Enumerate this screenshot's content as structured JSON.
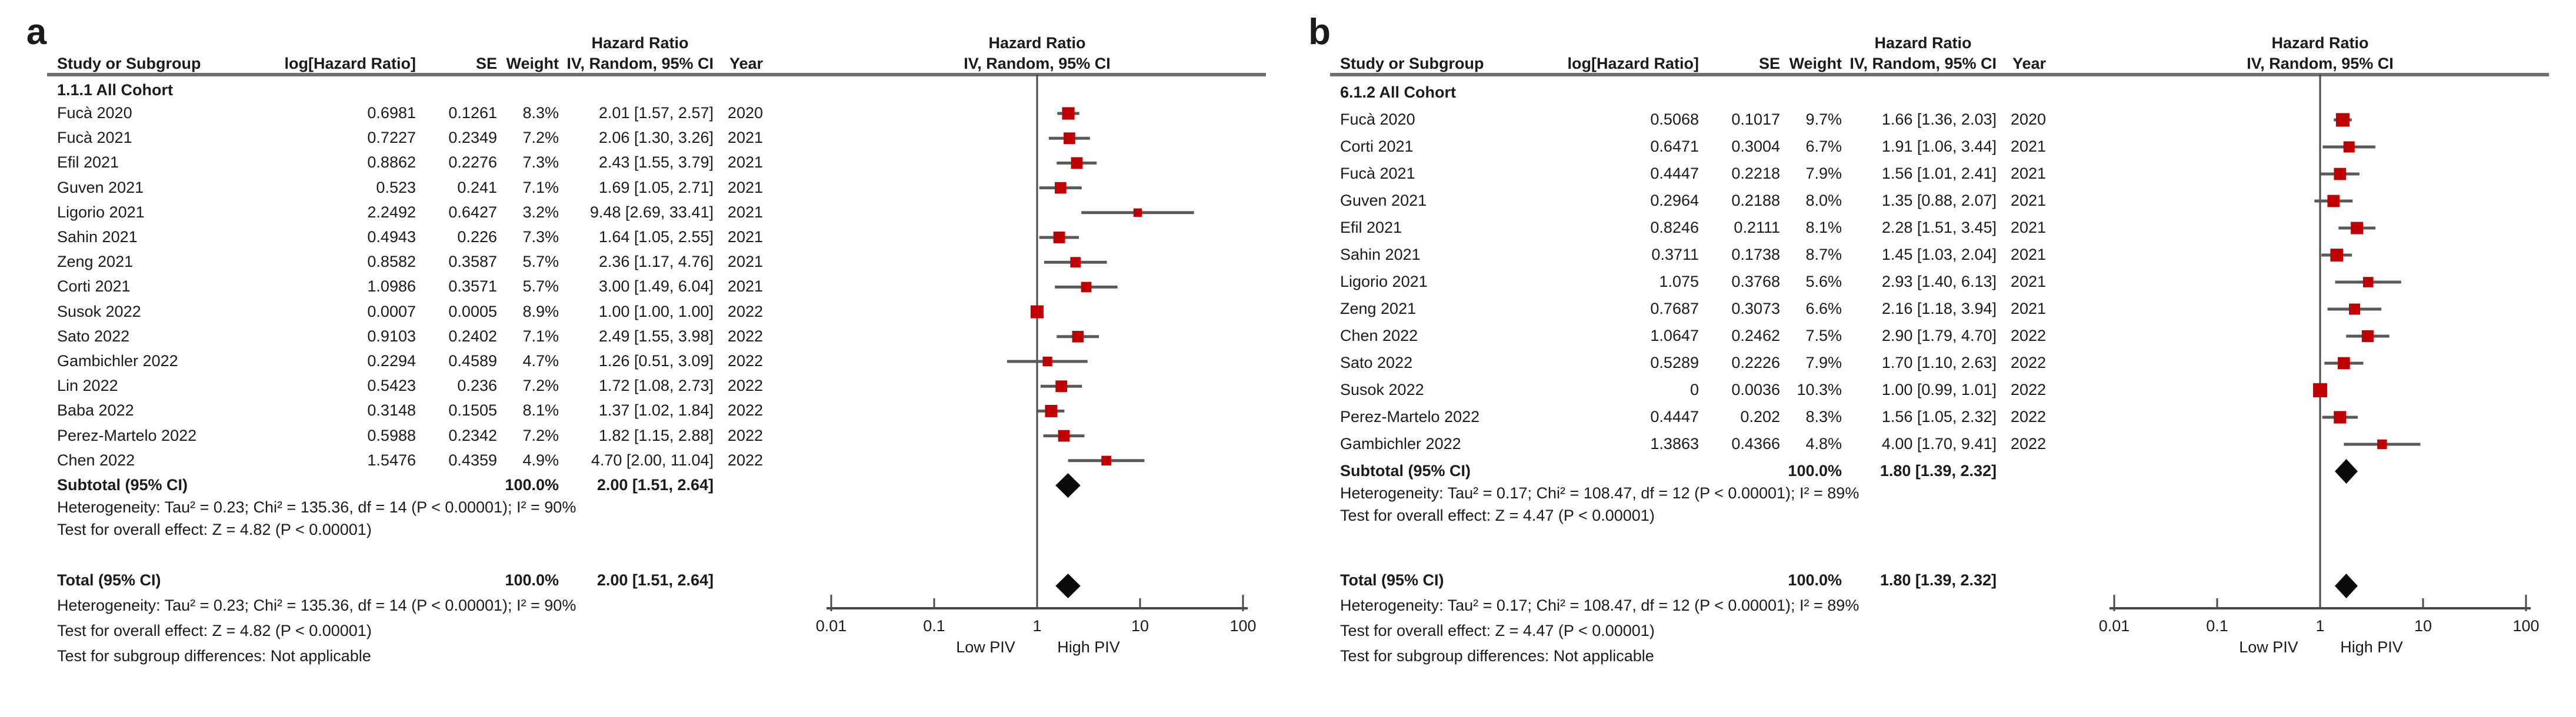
{
  "figure": {
    "marker_color": "#c00000",
    "ci_line_color": "#58595b",
    "axis_color": "#4a4a4a",
    "diamond_color": "#0a0a0a",
    "rule_color": "#6f6f6f"
  },
  "table_headers": {
    "study": "Study or Subgroup",
    "log_hr": "log[Hazard Ratio]",
    "se": "SE",
    "weight": "Weight",
    "effect": "Hazard Ratio",
    "method": "IV, Random, 95% CI",
    "year": "Year"
  },
  "chart_data": [
    {
      "type": "forest",
      "panel": "a",
      "subgroup_label": "1.1.1 All Cohort",
      "x_axis": {
        "scale": "log",
        "tick_values": [
          0.01,
          0.1,
          1,
          10,
          100
        ],
        "tick_labels": [
          "0.01",
          "0.1",
          "1",
          "10",
          "100"
        ],
        "left_label": "Low PIV",
        "right_label": "High PIV"
      },
      "studies": [
        {
          "name": "Fucà 2020",
          "log_hr": "0.6981",
          "se": "0.1261",
          "weight": "8.3%",
          "w": 8.3,
          "ci_text": "2.01 [1.57, 2.57]",
          "hr": 2.01,
          "lo": 1.57,
          "hi": 2.57,
          "year": "2020"
        },
        {
          "name": "Fucà 2021",
          "log_hr": "0.7227",
          "se": "0.2349",
          "weight": "7.2%",
          "w": 7.2,
          "ci_text": "2.06 [1.30, 3.26]",
          "hr": 2.06,
          "lo": 1.3,
          "hi": 3.26,
          "year": "2021"
        },
        {
          "name": "Efil 2021",
          "log_hr": "0.8862",
          "se": "0.2276",
          "weight": "7.3%",
          "w": 7.3,
          "ci_text": "2.43 [1.55, 3.79]",
          "hr": 2.43,
          "lo": 1.55,
          "hi": 3.79,
          "year": "2021"
        },
        {
          "name": "Guven 2021",
          "log_hr": "0.523",
          "se": "0.241",
          "weight": "7.1%",
          "w": 7.1,
          "ci_text": "1.69 [1.05, 2.71]",
          "hr": 1.69,
          "lo": 1.05,
          "hi": 2.71,
          "year": "2021"
        },
        {
          "name": "Ligorio 2021",
          "log_hr": "2.2492",
          "se": "0.6427",
          "weight": "3.2%",
          "w": 3.2,
          "ci_text": "9.48 [2.69, 33.41]",
          "hr": 9.48,
          "lo": 2.69,
          "hi": 33.41,
          "year": "2021"
        },
        {
          "name": "Sahin 2021",
          "log_hr": "0.4943",
          "se": "0.226",
          "weight": "7.3%",
          "w": 7.3,
          "ci_text": "1.64 [1.05, 2.55]",
          "hr": 1.64,
          "lo": 1.05,
          "hi": 2.55,
          "year": "2021"
        },
        {
          "name": "Zeng 2021",
          "log_hr": "0.8582",
          "se": "0.3587",
          "weight": "5.7%",
          "w": 5.7,
          "ci_text": "2.36 [1.17, 4.76]",
          "hr": 2.36,
          "lo": 1.17,
          "hi": 4.76,
          "year": "2021"
        },
        {
          "name": "Corti 2021",
          "log_hr": "1.0986",
          "se": "0.3571",
          "weight": "5.7%",
          "w": 5.7,
          "ci_text": "3.00 [1.49, 6.04]",
          "hr": 3.0,
          "lo": 1.49,
          "hi": 6.04,
          "year": "2021"
        },
        {
          "name": "Susok 2022",
          "log_hr": "0.0007",
          "se": "0.0005",
          "weight": "8.9%",
          "w": 8.9,
          "ci_text": "1.00 [1.00, 1.00]",
          "hr": 1.0,
          "lo": 1.0,
          "hi": 1.0,
          "year": "2022"
        },
        {
          "name": "Sato 2022",
          "log_hr": "0.9103",
          "se": "0.2402",
          "weight": "7.1%",
          "w": 7.1,
          "ci_text": "2.49 [1.55, 3.98]",
          "hr": 2.49,
          "lo": 1.55,
          "hi": 3.98,
          "year": "2022"
        },
        {
          "name": "Gambichler 2022",
          "log_hr": "0.2294",
          "se": "0.4589",
          "weight": "4.7%",
          "w": 4.7,
          "ci_text": "1.26 [0.51, 3.09]",
          "hr": 1.26,
          "lo": 0.51,
          "hi": 3.09,
          "year": "2022"
        },
        {
          "name": "Lin 2022",
          "log_hr": "0.5423",
          "se": "0.236",
          "weight": "7.2%",
          "w": 7.2,
          "ci_text": "1.72 [1.08, 2.73]",
          "hr": 1.72,
          "lo": 1.08,
          "hi": 2.73,
          "year": "2022"
        },
        {
          "name": "Baba 2022",
          "log_hr": "0.3148",
          "se": "0.1505",
          "weight": "8.1%",
          "w": 8.1,
          "ci_text": "1.37 [1.02, 1.84]",
          "hr": 1.37,
          "lo": 1.02,
          "hi": 1.84,
          "year": "2022"
        },
        {
          "name": "Perez-Martelo 2022",
          "log_hr": "0.5988",
          "se": "0.2342",
          "weight": "7.2%",
          "w": 7.2,
          "ci_text": "1.82 [1.15, 2.88]",
          "hr": 1.82,
          "lo": 1.15,
          "hi": 2.88,
          "year": "2022"
        },
        {
          "name": "Chen 2022",
          "log_hr": "1.5476",
          "se": "0.4359",
          "weight": "4.9%",
          "w": 4.9,
          "ci_text": "4.70 [2.00, 11.04]",
          "hr": 4.7,
          "lo": 2.0,
          "hi": 11.04,
          "year": "2022"
        }
      ],
      "subtotal": {
        "label": "Subtotal (95% CI)",
        "weight": "100.0%",
        "ci_text": "2.00 [1.51, 2.64]",
        "hr": 2.0,
        "lo": 1.51,
        "hi": 2.64
      },
      "het_subtotal": "Heterogeneity: Tau² = 0.23; Chi² = 135.36, df = 14 (P < 0.00001); I² = 90%",
      "test_subtotal": "Test for overall effect: Z = 4.82 (P < 0.00001)",
      "total": {
        "label": "Total (95% CI)",
        "weight": "100.0%",
        "ci_text": "2.00 [1.51, 2.64]",
        "hr": 2.0,
        "lo": 1.51,
        "hi": 2.64
      },
      "het_total": "Heterogeneity: Tau² = 0.23; Chi² = 135.36, df = 14 (P < 0.00001); I² = 90%",
      "test_total": "Test for overall effect: Z = 4.82 (P < 0.00001)",
      "subgroup_diff": "Test for subgroup differences: Not applicable"
    },
    {
      "type": "forest",
      "panel": "b",
      "subgroup_label": "6.1.2 All Cohort",
      "x_axis": {
        "scale": "log",
        "tick_values": [
          0.01,
          0.1,
          1,
          10,
          100
        ],
        "tick_labels": [
          "0.01",
          "0.1",
          "1",
          "10",
          "100"
        ],
        "left_label": "Low PIV",
        "right_label": "High PIV"
      },
      "studies": [
        {
          "name": "Fucà 2020",
          "log_hr": "0.5068",
          "se": "0.1017",
          "weight": "9.7%",
          "w": 9.7,
          "ci_text": "1.66 [1.36, 2.03]",
          "hr": 1.66,
          "lo": 1.36,
          "hi": 2.03,
          "year": "2020"
        },
        {
          "name": "Corti 2021",
          "log_hr": "0.6471",
          "se": "0.3004",
          "weight": "6.7%",
          "w": 6.7,
          "ci_text": "1.91 [1.06, 3.44]",
          "hr": 1.91,
          "lo": 1.06,
          "hi": 3.44,
          "year": "2021"
        },
        {
          "name": "Fucà 2021",
          "log_hr": "0.4447",
          "se": "0.2218",
          "weight": "7.9%",
          "w": 7.9,
          "ci_text": "1.56 [1.01, 2.41]",
          "hr": 1.56,
          "lo": 1.01,
          "hi": 2.41,
          "year": "2021"
        },
        {
          "name": "Guven 2021",
          "log_hr": "0.2964",
          "se": "0.2188",
          "weight": "8.0%",
          "w": 8.0,
          "ci_text": "1.35 [0.88, 2.07]",
          "hr": 1.35,
          "lo": 0.88,
          "hi": 2.07,
          "year": "2021"
        },
        {
          "name": "Efil 2021",
          "log_hr": "0.8246",
          "se": "0.2111",
          "weight": "8.1%",
          "w": 8.1,
          "ci_text": "2.28 [1.51, 3.45]",
          "hr": 2.28,
          "lo": 1.51,
          "hi": 3.45,
          "year": "2021"
        },
        {
          "name": "Sahin 2021",
          "log_hr": "0.3711",
          "se": "0.1738",
          "weight": "8.7%",
          "w": 8.7,
          "ci_text": "1.45 [1.03, 2.04]",
          "hr": 1.45,
          "lo": 1.03,
          "hi": 2.04,
          "year": "2021"
        },
        {
          "name": "Ligorio 2021",
          "log_hr": "1.075",
          "se": "0.3768",
          "weight": "5.6%",
          "w": 5.6,
          "ci_text": "2.93 [1.40, 6.13]",
          "hr": 2.93,
          "lo": 1.4,
          "hi": 6.13,
          "year": "2021"
        },
        {
          "name": "Zeng 2021",
          "log_hr": "0.7687",
          "se": "0.3073",
          "weight": "6.6%",
          "w": 6.6,
          "ci_text": "2.16 [1.18, 3.94]",
          "hr": 2.16,
          "lo": 1.18,
          "hi": 3.94,
          "year": "2021"
        },
        {
          "name": "Chen 2022",
          "log_hr": "1.0647",
          "se": "0.2462",
          "weight": "7.5%",
          "w": 7.5,
          "ci_text": "2.90 [1.79, 4.70]",
          "hr": 2.9,
          "lo": 1.79,
          "hi": 4.7,
          "year": "2022"
        },
        {
          "name": "Sato 2022",
          "log_hr": "0.5289",
          "se": "0.2226",
          "weight": "7.9%",
          "w": 7.9,
          "ci_text": "1.70 [1.10, 2.63]",
          "hr": 1.7,
          "lo": 1.1,
          "hi": 2.63,
          "year": "2022"
        },
        {
          "name": "Susok 2022",
          "log_hr": "0",
          "se": "0.0036",
          "weight": "10.3%",
          "w": 10.3,
          "ci_text": "1.00 [0.99, 1.01]",
          "hr": 1.0,
          "lo": 0.99,
          "hi": 1.01,
          "year": "2022"
        },
        {
          "name": "Perez-Martelo 2022",
          "log_hr": "0.4447",
          "se": "0.202",
          "weight": "8.3%",
          "w": 8.3,
          "ci_text": "1.56 [1.05, 2.32]",
          "hr": 1.56,
          "lo": 1.05,
          "hi": 2.32,
          "year": "2022"
        },
        {
          "name": "Gambichler 2022",
          "log_hr": "1.3863",
          "se": "0.4366",
          "weight": "4.8%",
          "w": 4.8,
          "ci_text": "4.00 [1.70, 9.41]",
          "hr": 4.0,
          "lo": 1.7,
          "hi": 9.41,
          "year": "2022"
        }
      ],
      "subtotal": {
        "label": "Subtotal (95% CI)",
        "weight": "100.0%",
        "ci_text": "1.80 [1.39, 2.32]",
        "hr": 1.8,
        "lo": 1.39,
        "hi": 2.32
      },
      "het_subtotal": "Heterogeneity: Tau² = 0.17; Chi² = 108.47, df = 12 (P < 0.00001); I² = 89%",
      "test_subtotal": "Test for overall effect: Z = 4.47 (P < 0.00001)",
      "total": {
        "label": "Total (95% CI)",
        "weight": "100.0%",
        "ci_text": "1.80 [1.39, 2.32]",
        "hr": 1.8,
        "lo": 1.39,
        "hi": 2.32
      },
      "het_total": "Heterogeneity: Tau² = 0.17; Chi² = 108.47, df = 12 (P < 0.00001); I² = 89%",
      "test_total": "Test for overall effect: Z = 4.47 (P < 0.00001)",
      "subgroup_diff": "Test for subgroup differences: Not applicable"
    }
  ]
}
